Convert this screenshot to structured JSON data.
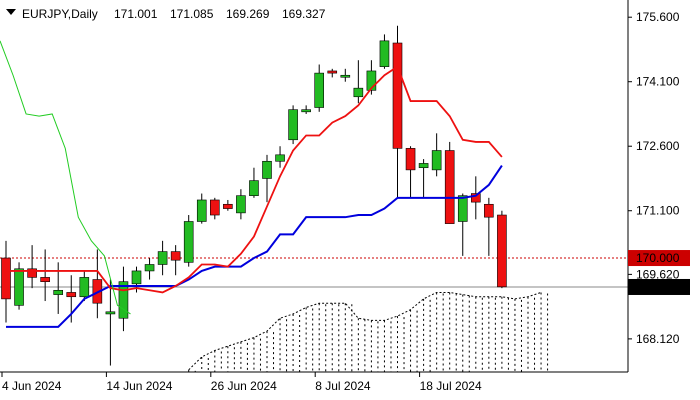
{
  "header": {
    "symbol": "EURJPY,Daily",
    "ohlc": [
      "171.001",
      "171.085",
      "169.269",
      "169.327"
    ]
  },
  "colors": {
    "bull": "#22bb22",
    "bear": "#ee1111",
    "kijun": "#0000dd",
    "tenkan": "#ee1111",
    "chikou": "#22cc22",
    "cloud": "#000000",
    "levelLine": "#cc0000",
    "priceLine": "#888888"
  },
  "chart_data": {
    "type": "candlestick",
    "ylim": [
      167.35,
      176.0
    ],
    "y_ticks": [
      175.6,
      174.1,
      172.6,
      171.1,
      169.62,
      168.12
    ],
    "y_tick_labels": [
      "175.600",
      "174.100",
      "172.600",
      "171.100",
      "169.620",
      "168.120"
    ],
    "x_tick_labels": [
      {
        "index": 0,
        "label": "4 Jun 2024"
      },
      {
        "index": 8,
        "label": "14 Jun 2024"
      },
      {
        "index": 16,
        "label": "26 Jun 2024"
      },
      {
        "index": 24,
        "label": "8 Jul 2024"
      },
      {
        "index": 32,
        "label": "18 Jul 2024"
      }
    ],
    "candles": [
      {
        "o": 170.0,
        "h": 170.4,
        "l": 168.5,
        "c": 169.05
      },
      {
        "o": 168.9,
        "h": 169.9,
        "l": 168.8,
        "c": 169.75
      },
      {
        "o": 169.75,
        "h": 170.3,
        "l": 169.3,
        "c": 169.55
      },
      {
        "o": 169.55,
        "h": 170.2,
        "l": 169.0,
        "c": 169.45
      },
      {
        "o": 169.15,
        "h": 169.9,
        "l": 168.7,
        "c": 169.25
      },
      {
        "o": 169.2,
        "h": 169.6,
        "l": 168.5,
        "c": 169.1
      },
      {
        "o": 169.1,
        "h": 169.7,
        "l": 169.0,
        "c": 169.55
      },
      {
        "o": 169.5,
        "h": 170.2,
        "l": 168.6,
        "c": 168.95
      },
      {
        "o": 168.7,
        "h": 169.5,
        "l": 167.5,
        "c": 168.75
      },
      {
        "o": 168.6,
        "h": 169.8,
        "l": 168.3,
        "c": 169.45
      },
      {
        "o": 169.4,
        "h": 169.8,
        "l": 169.2,
        "c": 169.7
      },
      {
        "o": 169.7,
        "h": 170.0,
        "l": 169.5,
        "c": 169.85
      },
      {
        "o": 169.85,
        "h": 170.4,
        "l": 169.6,
        "c": 170.15
      },
      {
        "o": 170.15,
        "h": 170.3,
        "l": 169.6,
        "c": 169.95
      },
      {
        "o": 169.9,
        "h": 171.0,
        "l": 169.8,
        "c": 170.85
      },
      {
        "o": 170.85,
        "h": 171.5,
        "l": 170.8,
        "c": 171.35
      },
      {
        "o": 171.35,
        "h": 171.4,
        "l": 170.9,
        "c": 171.0
      },
      {
        "o": 171.25,
        "h": 171.35,
        "l": 171.1,
        "c": 171.15
      },
      {
        "o": 171.05,
        "h": 171.6,
        "l": 170.9,
        "c": 171.45
      },
      {
        "o": 171.45,
        "h": 172.1,
        "l": 171.4,
        "c": 171.8
      },
      {
        "o": 171.85,
        "h": 172.4,
        "l": 171.3,
        "c": 172.25
      },
      {
        "o": 172.25,
        "h": 172.6,
        "l": 172.1,
        "c": 172.4
      },
      {
        "o": 172.75,
        "h": 173.55,
        "l": 172.65,
        "c": 173.45
      },
      {
        "o": 173.4,
        "h": 173.55,
        "l": 173.35,
        "c": 173.45
      },
      {
        "o": 173.5,
        "h": 174.5,
        "l": 173.4,
        "c": 174.3
      },
      {
        "o": 174.35,
        "h": 174.4,
        "l": 174.2,
        "c": 174.3
      },
      {
        "o": 174.25,
        "h": 174.4,
        "l": 174.1,
        "c": 174.25
      },
      {
        "o": 173.75,
        "h": 174.6,
        "l": 173.6,
        "c": 173.95
      },
      {
        "o": 173.9,
        "h": 174.6,
        "l": 173.8,
        "c": 174.35
      },
      {
        "o": 174.45,
        "h": 175.2,
        "l": 174.4,
        "c": 175.05
      },
      {
        "o": 175.0,
        "h": 175.4,
        "l": 171.4,
        "c": 172.55
      },
      {
        "o": 172.55,
        "h": 172.6,
        "l": 171.4,
        "c": 172.05
      },
      {
        "o": 172.1,
        "h": 172.3,
        "l": 171.4,
        "c": 172.2
      },
      {
        "o": 172.05,
        "h": 172.9,
        "l": 171.9,
        "c": 172.5
      },
      {
        "o": 172.5,
        "h": 172.7,
        "l": 170.8,
        "c": 170.8
      },
      {
        "o": 170.85,
        "h": 171.5,
        "l": 170.05,
        "c": 171.45
      },
      {
        "o": 171.5,
        "h": 171.9,
        "l": 170.9,
        "c": 171.3
      },
      {
        "o": 171.25,
        "h": 171.4,
        "l": 170.05,
        "c": 170.95
      },
      {
        "o": 171.0,
        "h": 171.1,
        "l": 169.3,
        "c": 169.33
      }
    ],
    "tenkan": [
      169.7,
      169.7,
      169.7,
      169.7,
      169.7,
      169.7,
      169.7,
      169.7,
      169.3,
      169.25,
      169.3,
      169.25,
      169.2,
      169.35,
      169.55,
      169.85,
      169.85,
      169.8,
      170.1,
      170.5,
      171.2,
      171.9,
      172.5,
      172.85,
      172.85,
      173.15,
      173.3,
      173.55,
      173.95,
      174.25,
      174.45,
      173.65,
      173.65,
      173.65,
      173.3,
      172.75,
      172.7,
      172.7,
      172.35
    ],
    "kijun": [
      168.4,
      168.4,
      168.4,
      168.4,
      168.4,
      168.7,
      169.05,
      169.2,
      169.35,
      169.35,
      169.35,
      169.35,
      169.35,
      169.35,
      169.5,
      169.7,
      169.8,
      169.8,
      169.8,
      170.0,
      170.15,
      170.55,
      170.55,
      170.95,
      170.95,
      170.95,
      170.95,
      171.0,
      171.0,
      171.15,
      171.4,
      171.4,
      171.4,
      171.4,
      171.4,
      171.4,
      171.45,
      171.7,
      172.15
    ],
    "chikou": [
      175.05,
      174.25,
      173.35,
      173.3,
      173.35,
      172.55,
      170.95,
      170.4,
      170.05,
      168.9,
      168.7
    ],
    "cloud": [
      {
        "i": 14,
        "a": 167.25,
        "b": 167.4
      },
      {
        "i": 15,
        "a": 167.25,
        "b": 167.7
      },
      {
        "i": 16,
        "a": 167.25,
        "b": 167.85
      },
      {
        "i": 17,
        "a": 167.25,
        "b": 167.95
      },
      {
        "i": 18,
        "a": 167.25,
        "b": 168.05
      },
      {
        "i": 19,
        "a": 167.25,
        "b": 168.15
      },
      {
        "i": 20,
        "a": 167.25,
        "b": 168.3
      },
      {
        "i": 21,
        "a": 167.25,
        "b": 168.6
      },
      {
        "i": 22,
        "a": 167.25,
        "b": 168.7
      },
      {
        "i": 23,
        "a": 167.25,
        "b": 168.85
      },
      {
        "i": 24,
        "a": 167.25,
        "b": 168.95
      },
      {
        "i": 25,
        "a": 167.25,
        "b": 168.95
      },
      {
        "i": 26,
        "a": 167.25,
        "b": 168.95
      },
      {
        "i": 27,
        "a": 167.25,
        "b": 168.6
      },
      {
        "i": 28,
        "a": 167.25,
        "b": 168.55
      },
      {
        "i": 29,
        "a": 167.25,
        "b": 168.55
      },
      {
        "i": 30,
        "a": 167.25,
        "b": 168.65
      },
      {
        "i": 31,
        "a": 167.25,
        "b": 168.8
      },
      {
        "i": 32,
        "a": 167.25,
        "b": 169.05
      },
      {
        "i": 33,
        "a": 167.25,
        "b": 169.2
      },
      {
        "i": 34,
        "a": 167.25,
        "b": 169.2
      },
      {
        "i": 35,
        "a": 167.25,
        "b": 169.15
      },
      {
        "i": 36,
        "a": 167.25,
        "b": 169.1
      },
      {
        "i": 37,
        "a": 167.25,
        "b": 169.1
      },
      {
        "i": 38,
        "a": 167.25,
        "b": 169.1
      },
      {
        "i": 39,
        "a": 167.25,
        "b": 169.05
      },
      {
        "i": 40,
        "a": 167.25,
        "b": 169.1
      },
      {
        "i": 41,
        "a": 167.25,
        "b": 169.2
      }
    ],
    "level_line": {
      "value": 170.0,
      "label": "170.000"
    },
    "last_price": {
      "value": 169.327,
      "label": "169.327"
    }
  }
}
